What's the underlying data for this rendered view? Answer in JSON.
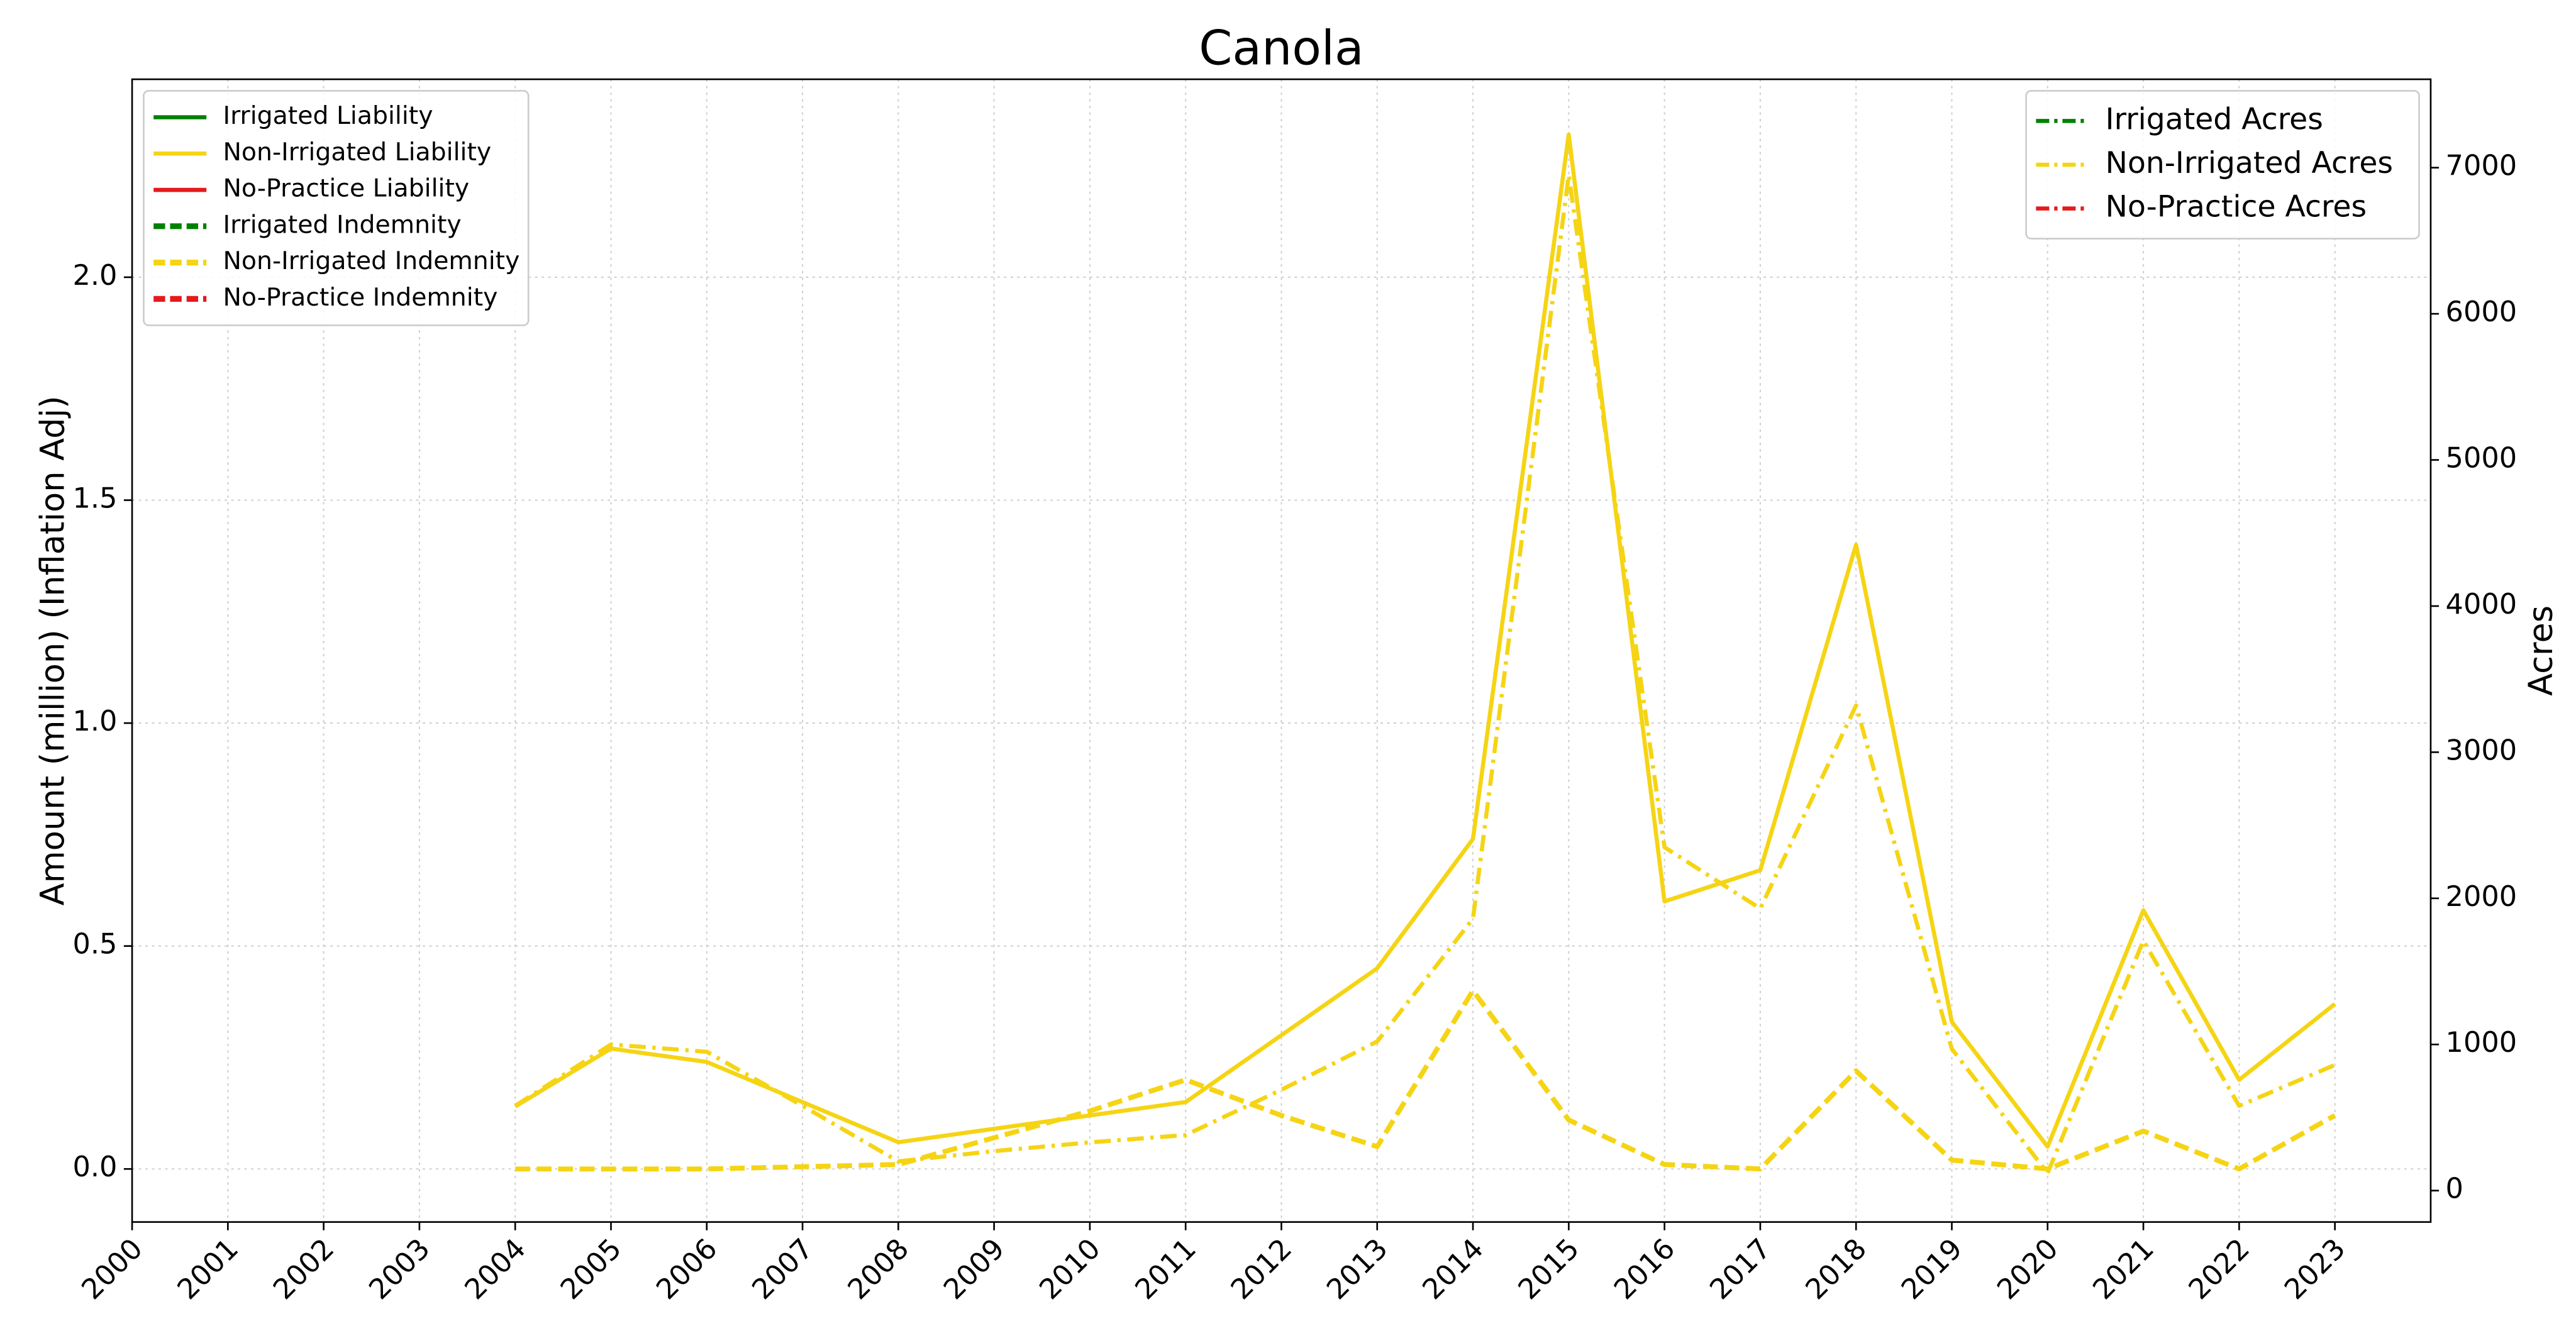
{
  "chart_data": {
    "type": "line",
    "title": "Canola",
    "ylabel": "Amount (million) (Inflation Adj)",
    "y2label": "Acres",
    "x": [
      2004,
      2005,
      2006,
      2007,
      2008,
      2009,
      2010,
      2011,
      2012,
      2013,
      2014,
      2015,
      2016,
      2017,
      2018,
      2019,
      2020,
      2021,
      2022,
      2023
    ],
    "xlim": [
      2000,
      2024
    ],
    "xticks": [
      2000,
      2001,
      2002,
      2003,
      2004,
      2005,
      2006,
      2007,
      2008,
      2009,
      2010,
      2011,
      2012,
      2013,
      2014,
      2015,
      2016,
      2017,
      2018,
      2019,
      2020,
      2021,
      2022,
      2023
    ],
    "ylim": [
      -0.119,
      2.444
    ],
    "yticks": [
      {
        "value": 0,
        "label": "0.0"
      },
      0.5,
      {
        "value": 1,
        "label": "1.0"
      },
      1.5,
      {
        "value": 2,
        "label": "2.0"
      }
    ],
    "y2lim": [
      -215,
      7605
    ],
    "y2ticks": [
      0,
      1000,
      2000,
      3000,
      4000,
      5000,
      6000,
      7000
    ],
    "grid": true,
    "legend": "upper left",
    "legend2": "upper right",
    "series": [
      {
        "name": "Irrigated Liability",
        "color": "#008000",
        "linestyle": "solid",
        "values": [
          null,
          null,
          null,
          null,
          null,
          null,
          null,
          null,
          null,
          null,
          null,
          null,
          null,
          null,
          null,
          null,
          null,
          null,
          null,
          null
        ]
      },
      {
        "name": "Non-Irrigated Liability",
        "color": "#f5d414",
        "linestyle": "solid",
        "values": [
          0.14,
          0.27,
          0.24,
          0.15,
          0.06,
          0.09,
          0.12,
          0.15,
          0.3,
          0.45,
          0.74,
          2.32,
          0.6,
          0.67,
          1.4,
          0.33,
          0.05,
          0.58,
          0.2,
          0.37
        ]
      },
      {
        "name": "No-Practice Liability",
        "color": "#e41a1c",
        "linestyle": "solid",
        "values": [
          null,
          null,
          null,
          null,
          null,
          null,
          null,
          null,
          null,
          null,
          null,
          null,
          null,
          null,
          null,
          null,
          null,
          null,
          null,
          null
        ]
      },
      {
        "name": "Irrigated Indemnity",
        "color": "#008000",
        "linestyle": "dashed",
        "values": [
          null,
          null,
          null,
          null,
          null,
          null,
          null,
          null,
          null,
          null,
          null,
          null,
          null,
          null,
          null,
          null,
          null,
          null,
          null,
          null
        ]
      },
      {
        "name": "Non-Irrigated Indemnity",
        "color": "#f5d414",
        "linestyle": "dashed",
        "values": [
          0,
          0,
          0,
          0.005,
          0.01,
          0.07,
          0.13,
          0.2,
          0.12,
          0.05,
          0.4,
          0.11,
          0.01,
          0,
          0.22,
          0.02,
          0,
          0.085,
          0,
          0.12
        ]
      },
      {
        "name": "No-Practice Indemnity",
        "color": "#e41a1c",
        "linestyle": "dashed",
        "values": [
          null,
          null,
          null,
          null,
          null,
          null,
          null,
          null,
          null,
          null,
          null,
          null,
          null,
          null,
          null,
          null,
          null,
          null,
          null,
          null
        ]
      },
      {
        "name": "Irrigated Acres",
        "color": "#008000",
        "linestyle": "dashdot",
        "axis": "y2",
        "values": [
          null,
          null,
          null,
          null,
          null,
          null,
          null,
          null,
          null,
          null,
          null,
          null,
          null,
          null,
          null,
          null,
          null,
          null,
          null,
          null
        ]
      },
      {
        "name": "Non-Irrigated Acres",
        "color": "#f5d414",
        "linestyle": "dashdot",
        "axis": "y2",
        "values": [
          580,
          1000,
          950,
          580,
          200,
          270,
          330,
          380,
          690,
          1020,
          1860,
          6950,
          2350,
          1930,
          3320,
          970,
          120,
          1710,
          580,
          860
        ]
      },
      {
        "name": "No-Practice Acres",
        "color": "#e41a1c",
        "linestyle": "dashdot",
        "axis": "y2",
        "values": [
          null,
          null,
          null,
          null,
          null,
          null,
          null,
          null,
          null,
          null,
          null,
          null,
          null,
          null,
          null,
          null,
          null,
          null,
          null,
          null
        ]
      }
    ]
  }
}
